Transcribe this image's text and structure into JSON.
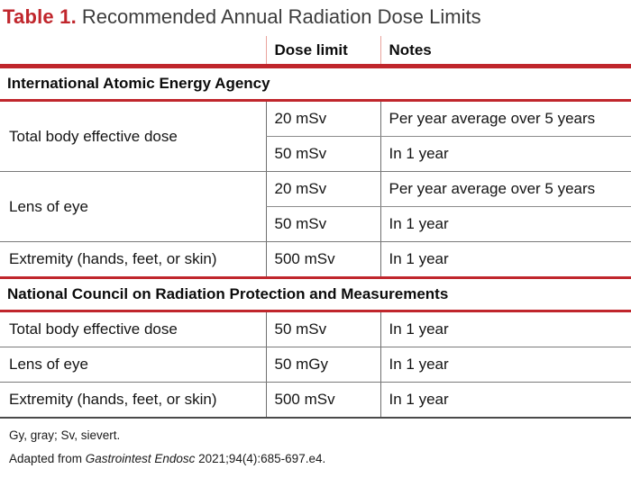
{
  "title": {
    "label": "Table 1.",
    "text": "Recommended Annual Radiation Dose Limits"
  },
  "colors": {
    "accent_red": "#c0262c",
    "header_divider_red": "#e9a39d",
    "grid_gray": "#7a7a7a",
    "bottom_border_gray": "#4a4a4a"
  },
  "table": {
    "columns": [
      {
        "header": ""
      },
      {
        "header": "Dose limit"
      },
      {
        "header": "Notes"
      }
    ],
    "sections": [
      {
        "header": "International Atomic Energy Agency",
        "rows": [
          {
            "parameter": "Total body effective dose",
            "dose": "20 mSv",
            "note": "Per year average over 5 years"
          },
          {
            "parameter": "",
            "dose": "50 mSv",
            "note": "In 1 year"
          },
          {
            "parameter": "Lens of eye",
            "dose": "20 mSv",
            "note": "Per year average over 5 years"
          },
          {
            "parameter": "",
            "dose": "50 mSv",
            "note": "In 1 year"
          },
          {
            "parameter": "Extremity (hands, feet, or skin)",
            "dose": "500 mSv",
            "note": "In 1 year"
          }
        ]
      },
      {
        "header": "National Council on Radiation Protection and Measurements",
        "rows": [
          {
            "parameter": "Total body effective dose",
            "dose": "50 mSv",
            "note": "In 1 year"
          },
          {
            "parameter": "Lens of eye",
            "dose": "50 mGy",
            "note": "In 1 year"
          },
          {
            "parameter": "Extremity (hands, feet, or skin)",
            "dose": "500 mSv",
            "note": "In 1 year"
          }
        ]
      }
    ]
  },
  "footnotes": {
    "abbreviations": "Gy, gray; Sv, sievert.",
    "adapted_prefix": "Adapted from ",
    "adapted_source": "Gastrointest Endosc",
    "adapted_suffix": " 2021;94(4):685-697.e4."
  }
}
